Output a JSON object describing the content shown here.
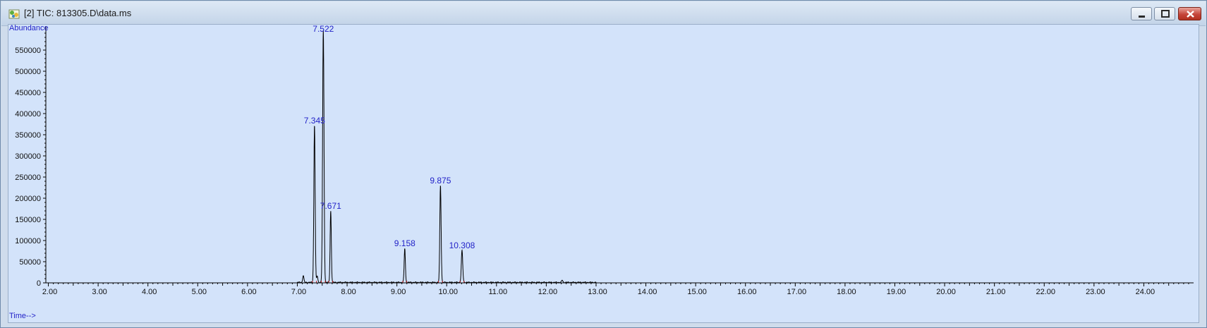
{
  "window": {
    "title": "[2] TIC: 813305.D\\data.ms",
    "icon": "chromatogram-app-icon",
    "controls": [
      "minimize",
      "maximize",
      "close"
    ]
  },
  "chart_data": {
    "type": "line",
    "ylabel": "Abundance",
    "xlabel": "Time-->",
    "xlim": [
      1.95,
      25.0
    ],
    "ylim": [
      0,
      600000
    ],
    "x_ticks": [
      2.0,
      3.0,
      4.0,
      5.0,
      6.0,
      7.0,
      8.0,
      9.0,
      10.0,
      11.0,
      12.0,
      13.0,
      14.0,
      15.0,
      16.0,
      17.0,
      18.0,
      19.0,
      20.0,
      21.0,
      22.0,
      23.0,
      24.0
    ],
    "x_tick_labels": [
      "2.00",
      "3.00",
      "4.00",
      "5.00",
      "6.00",
      "7.00",
      "8.00",
      "9.00",
      "10.00",
      "11.00",
      "12.00",
      "13.00",
      "14.00",
      "15.00",
      "16.00",
      "17.00",
      "18.00",
      "19.00",
      "20.00",
      "21.00",
      "22.00",
      "23.00",
      "24.00"
    ],
    "y_ticks": [
      0,
      50000,
      100000,
      150000,
      200000,
      250000,
      300000,
      350000,
      400000,
      450000,
      500000,
      550000
    ],
    "y_tick_labels": [
      "0",
      "50000",
      "100000",
      "150000",
      "200000",
      "250000",
      "300000",
      "350000",
      "400000",
      "450000",
      "500000",
      "550000"
    ],
    "peaks": [
      {
        "rt": 7.345,
        "label": "7.345",
        "abundance": 370000
      },
      {
        "rt": 7.522,
        "label": "7.522",
        "abundance": 595000
      },
      {
        "rt": 7.671,
        "label": "7.671",
        "abundance": 168000
      },
      {
        "rt": 9.158,
        "label": "9.158",
        "abundance": 80000
      },
      {
        "rt": 9.875,
        "label": "9.875",
        "abundance": 228000
      },
      {
        "rt": 10.308,
        "label": "10.308",
        "abundance": 75000
      }
    ],
    "minor_peaks": [
      {
        "rt": 7.12,
        "abundance": 16000
      },
      {
        "rt": 7.4,
        "abundance": 15000
      },
      {
        "rt": 12.32,
        "abundance": 5000
      }
    ],
    "colors": {
      "trace": "#000000",
      "labels": "#2323c8",
      "background": "#d3e3fa",
      "integration_marks": "#d02020"
    }
  }
}
